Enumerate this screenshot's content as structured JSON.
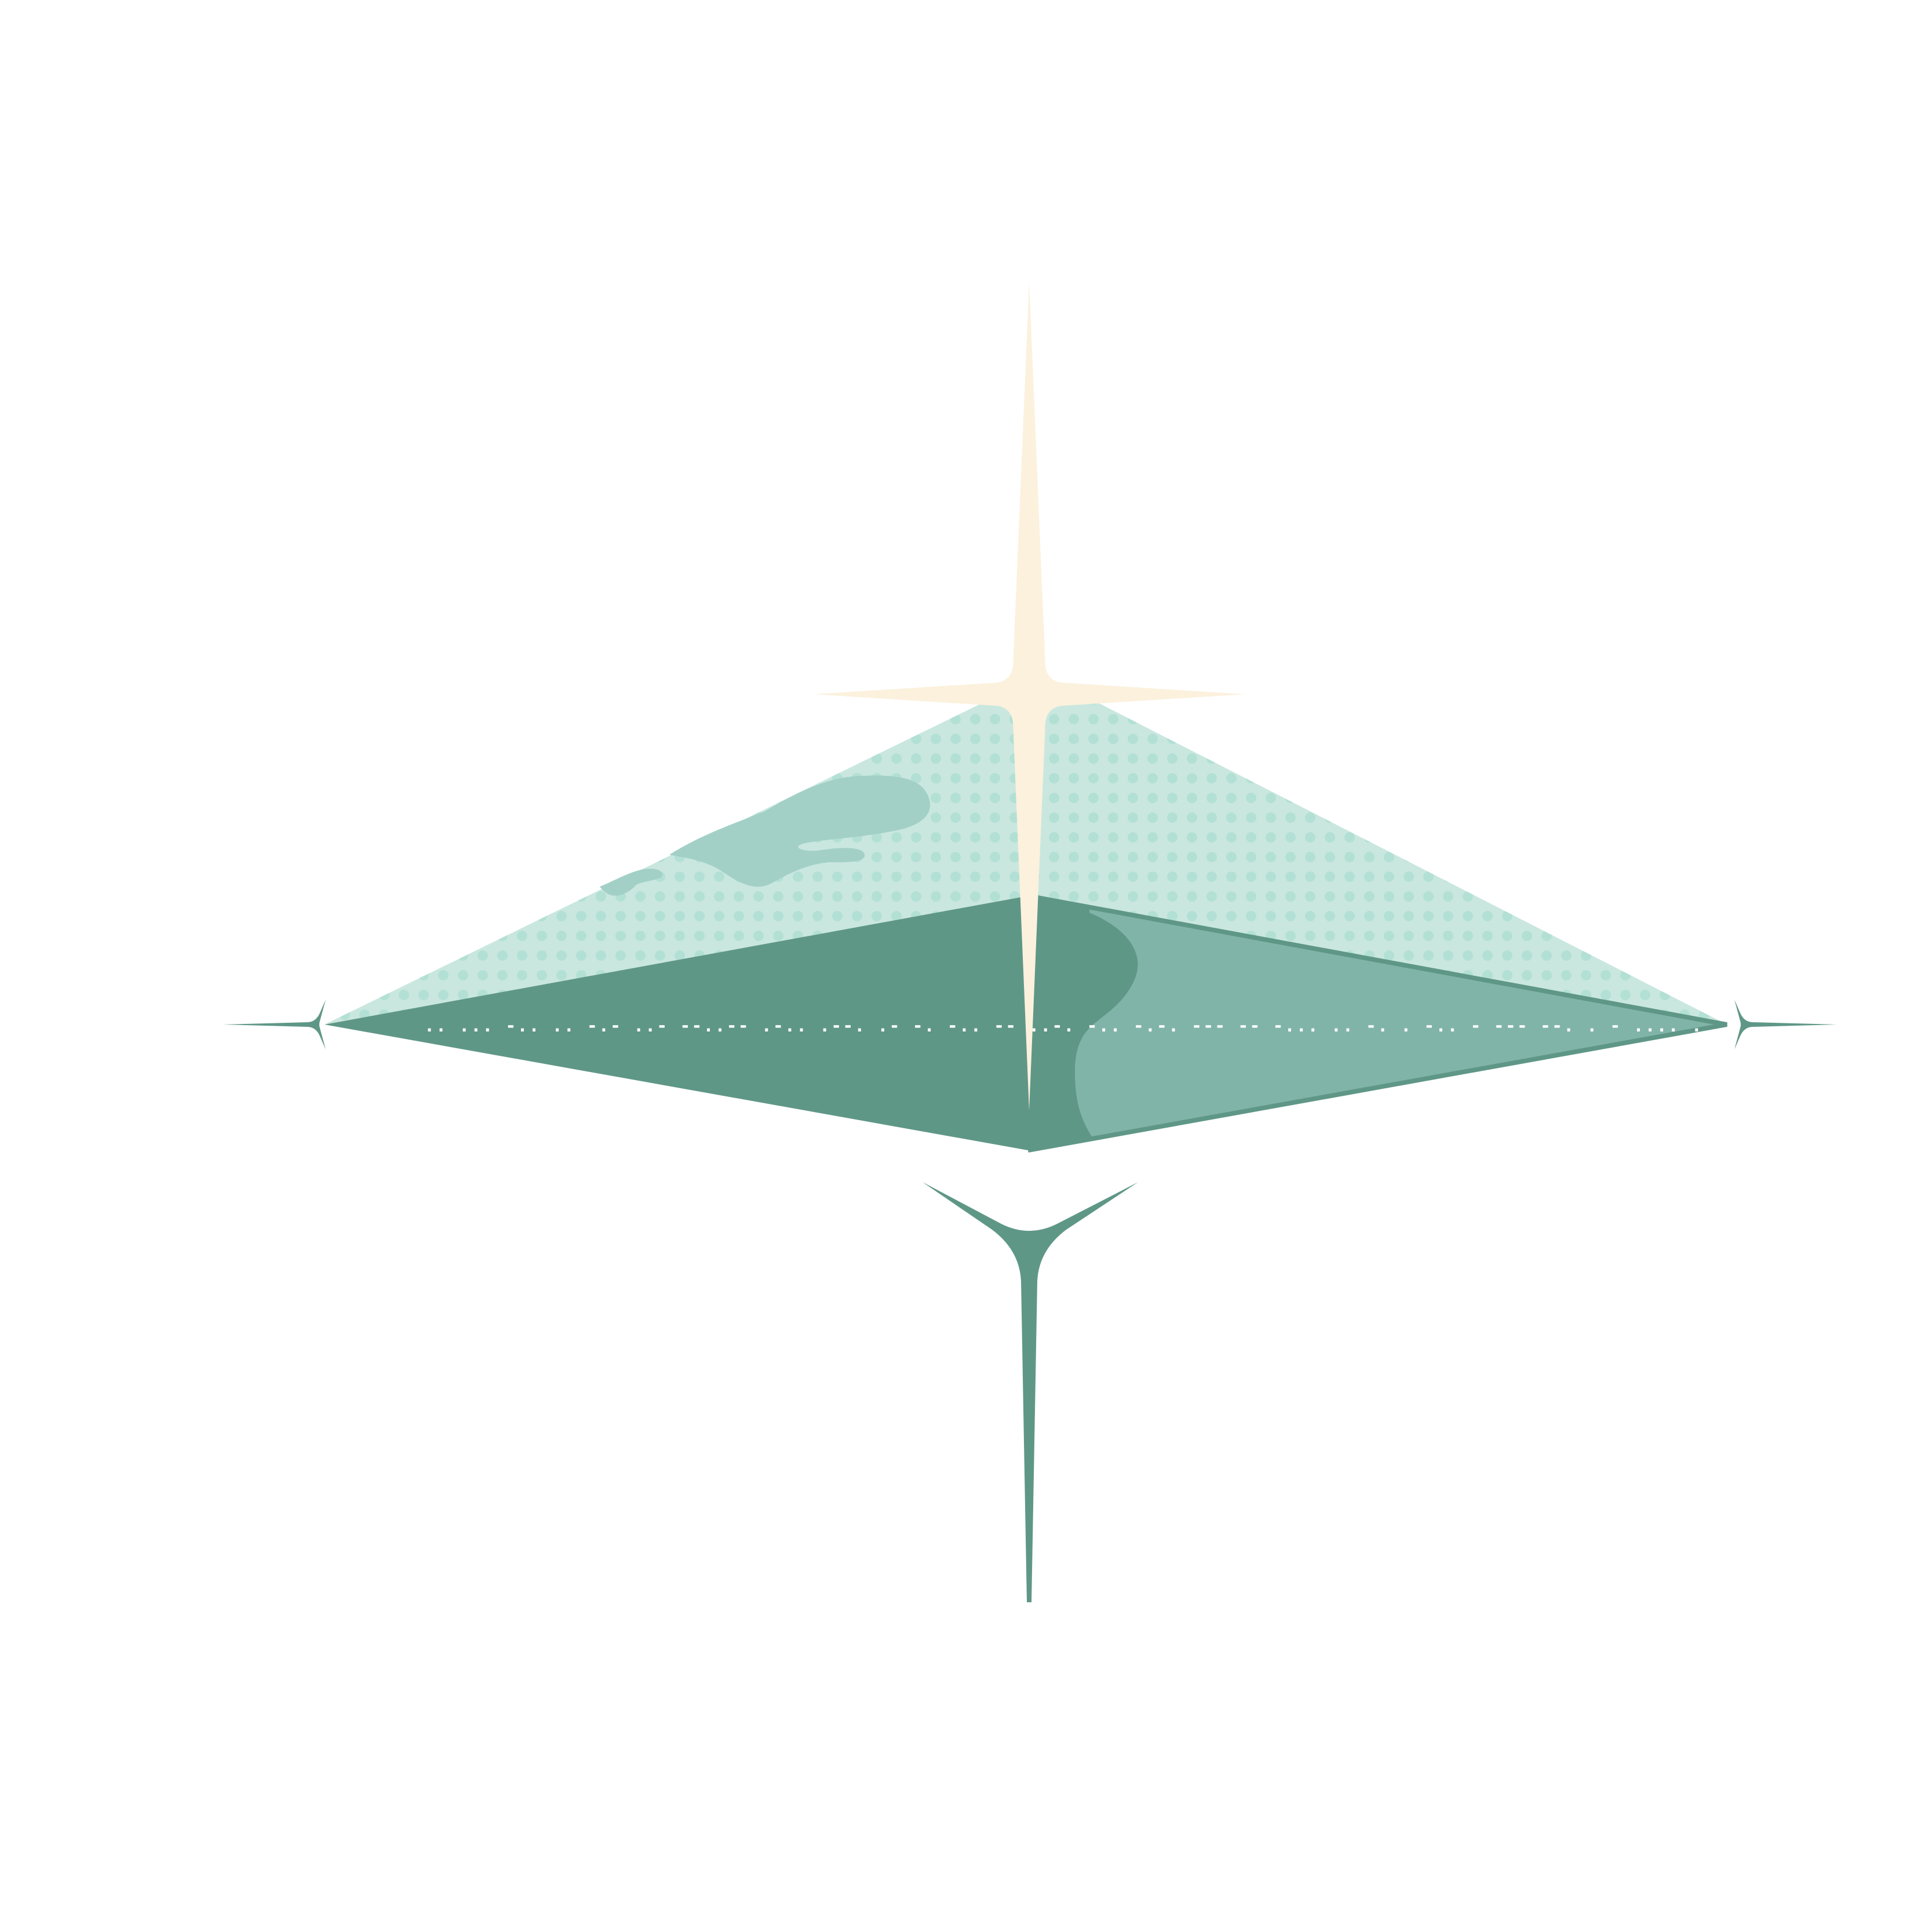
{
  "artwork": {
    "morse_line": ".. ...   -.. .. -.- ..- --..--   .-.. .--.   .- -. -..   -- ..-. -..  -.-. --- -- -... .. -. . -..   - --- --. . - .... . .-."
  },
  "colors": {
    "background": "#ffffff",
    "teal_dark": "#5f9787",
    "teal_mid": "#81b4a8",
    "teal_light": "#c9e7df",
    "teal_cloud": "#a3d0c6",
    "teal_dot": "#b3e0d5",
    "cream_star": "#fbf1dd",
    "morse": "#ffffff"
  },
  "icons": [
    "four-point-sparkle-icon",
    "spike-star-icon"
  ]
}
